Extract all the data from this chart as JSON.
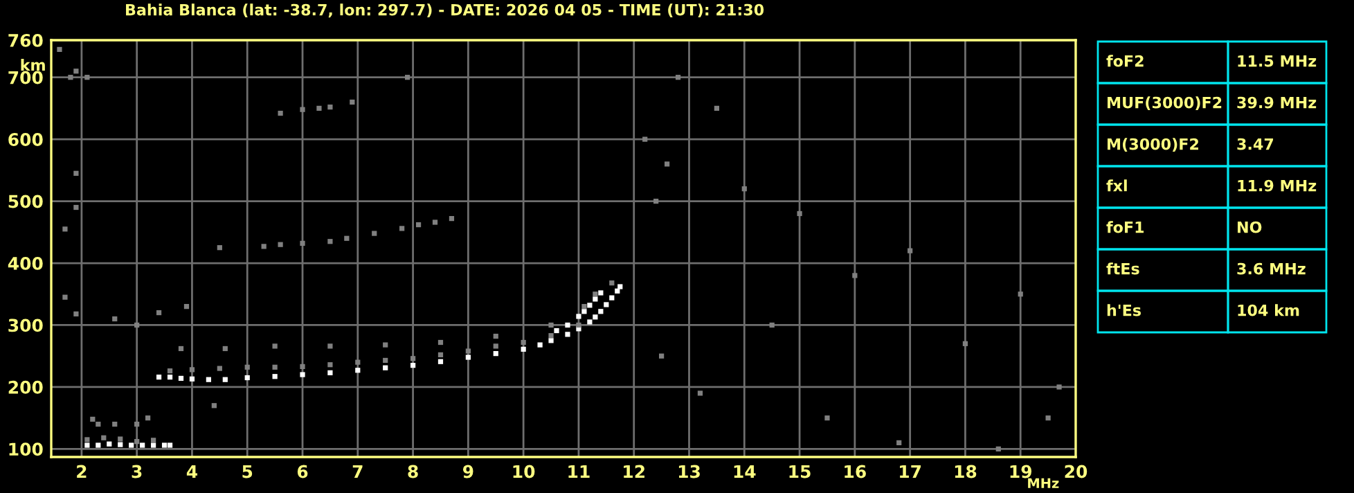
{
  "chart_data": {
    "type": "scatter",
    "title": "Bahia Blanca (lat: -38.7, lon: 297.7) - DATE: 2026 04 05 - TIME (UT): 21:30",
    "xlabel": "MHz",
    "ylabel": "km",
    "xlim": [
      1.45,
      20
    ],
    "ylim": [
      87,
      760
    ],
    "xticks": [
      2,
      3,
      4,
      5,
      6,
      7,
      8,
      9,
      10,
      11,
      12,
      13,
      14,
      15,
      16,
      17,
      18,
      19,
      20
    ],
    "yticks": [
      100,
      200,
      300,
      400,
      500,
      600,
      700,
      760
    ],
    "grid": true,
    "marker": "square",
    "legend": false,
    "series": [
      {
        "color": "#ffffff",
        "x": [
          2.1,
          2.3,
          2.5,
          2.7,
          2.9,
          3.1,
          3.3,
          3.5,
          3.6
        ],
        "values": [
          106,
          106,
          108,
          107,
          106,
          106,
          106,
          106,
          106
        ]
      },
      {
        "color": "#ffffff",
        "x": [
          3.4,
          3.6,
          3.8,
          4.0,
          4.3,
          4.6,
          5.0,
          5.5,
          6.0,
          6.5,
          7.0,
          7.5,
          8.0,
          8.5,
          9.0,
          9.5,
          10.0,
          10.3,
          10.5,
          10.8,
          11.0,
          11.2,
          11.3,
          11.4,
          11.5,
          11.6,
          11.7,
          11.75
        ],
        "values": [
          216,
          216,
          214,
          213,
          212,
          212,
          215,
          217,
          220,
          223,
          227,
          231,
          235,
          241,
          248,
          254,
          261,
          268,
          275,
          285,
          294,
          305,
          313,
          322,
          333,
          344,
          355,
          362
        ]
      },
      {
        "color": "#ffffff",
        "x": [
          10.6,
          10.8,
          11.0,
          11.1,
          11.2,
          11.3,
          11.4
        ],
        "values": [
          291,
          300,
          314,
          322,
          332,
          342,
          352
        ]
      },
      {
        "color": "#808080",
        "x": [
          2.1,
          2.4,
          2.7,
          3.0,
          3.3,
          2.3,
          2.6,
          3.0,
          2.2,
          3.2,
          3.6,
          4.0,
          4.5,
          5.0,
          5.5,
          6.0,
          6.5,
          7.0,
          7.5,
          8.0,
          8.5,
          9.0,
          9.5,
          10.0,
          10.5,
          11.0,
          3.8,
          4.6,
          5.5,
          6.5,
          7.5,
          8.5,
          9.5,
          10.5,
          11.1,
          11.3,
          11.6,
          4.5,
          5.3,
          5.6,
          6.0,
          6.5,
          6.8,
          7.3,
          7.8,
          8.1,
          8.4,
          8.7,
          5.6,
          6.0,
          6.3,
          6.5,
          6.9
        ],
        "values": [
          115,
          118,
          116,
          112,
          114,
          140,
          140,
          140,
          148,
          150,
          226,
          228,
          230,
          232,
          232,
          233,
          236,
          240,
          243,
          246,
          252,
          258,
          266,
          272,
          283,
          300,
          262,
          262,
          266,
          266,
          268,
          272,
          282,
          300,
          330,
          350,
          368,
          425,
          427,
          430,
          432,
          435,
          440,
          448,
          456,
          462,
          466,
          472,
          642,
          648,
          650,
          652,
          660
        ]
      },
      {
        "color": "#808080",
        "x": [
          1.6,
          1.9,
          1.8,
          2.1,
          1.9,
          1.9,
          1.7,
          1.7,
          1.9,
          2.6,
          3.0,
          3.4,
          3.9,
          4.4,
          7.9,
          12.4,
          12.6,
          12.2,
          12.8,
          13.5,
          14.0,
          15.0,
          16.0,
          17.0,
          18.0,
          19.0,
          19.5,
          15.5,
          14.5,
          12.5,
          13.2,
          16.8,
          18.6,
          19.7
        ],
        "values": [
          745,
          710,
          700,
          700,
          545,
          490,
          455,
          345,
          318,
          310,
          300,
          320,
          330,
          170,
          700,
          500,
          560,
          600,
          700,
          650,
          520,
          480,
          380,
          420,
          270,
          350,
          150,
          150,
          300,
          250,
          190,
          110,
          100,
          200
        ]
      }
    ],
    "annotations": [
      "foF2",
      "11.5 MHz",
      "MUF(3000)F2",
      "39.9 MHz",
      "M(3000)F2",
      "3.47",
      "fxl",
      "11.9 MHz",
      "foF1",
      "NO",
      "ftEs",
      "3.6 MHz",
      "h'Es",
      "104 km"
    ]
  }
}
